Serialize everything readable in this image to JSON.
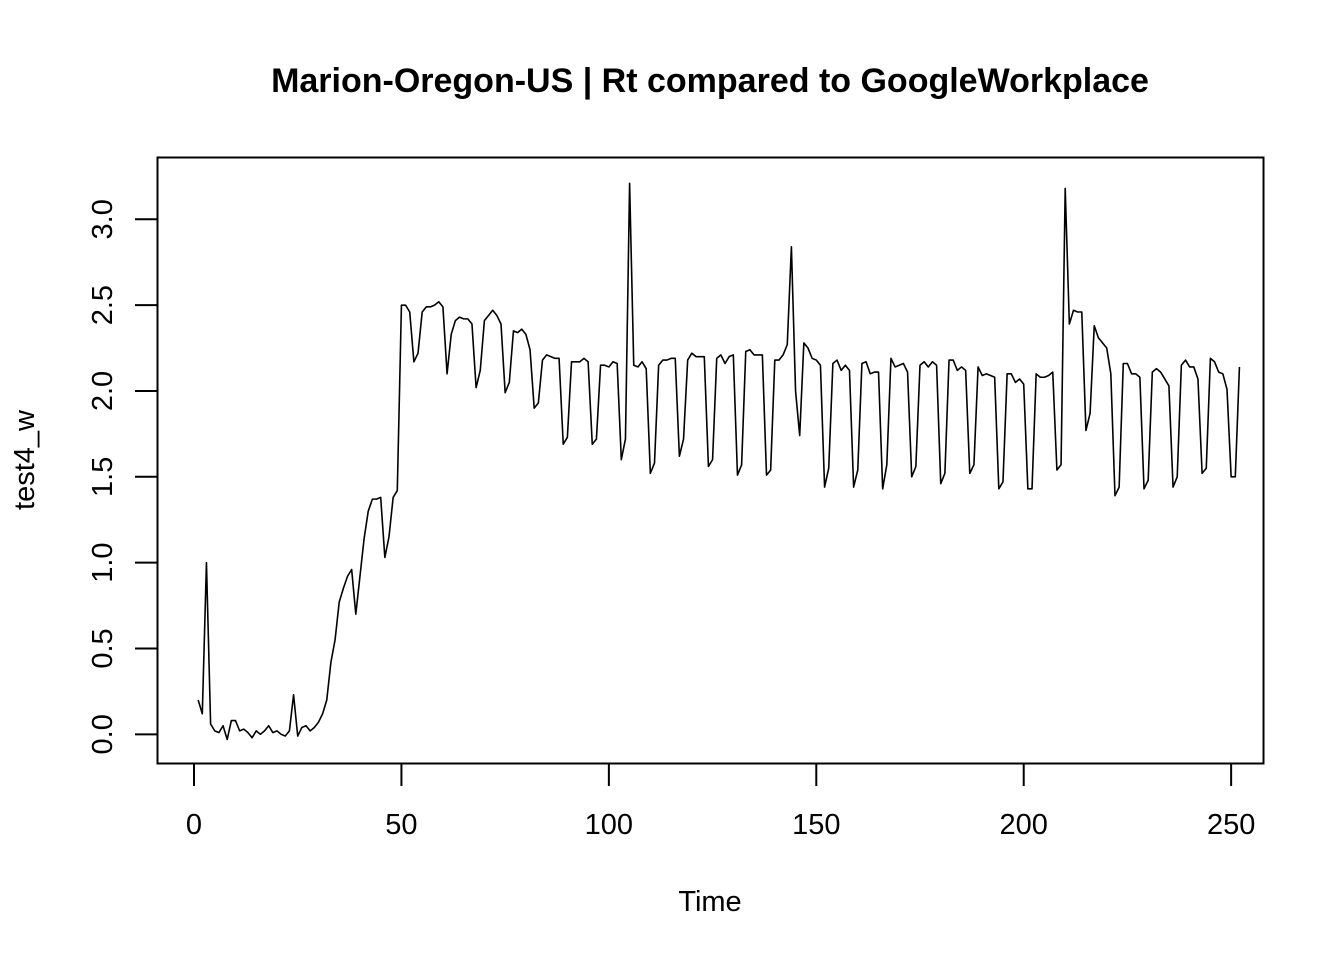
{
  "chart_data": {
    "type": "line",
    "title": "Marion-Oregon-US | Rt compared to GoogleWorkplace",
    "xlabel": "Time",
    "ylabel": "test4_w",
    "xlim": [
      -8.8,
      257.8
    ],
    "ylim": [
      -0.17,
      3.36
    ],
    "xticks": [
      0,
      50,
      100,
      150,
      200,
      250
    ],
    "yticks": [
      0.0,
      0.5,
      1.0,
      1.5,
      2.0,
      2.5,
      3.0
    ],
    "xtick_labels": [
      "0",
      "50",
      "100",
      "150",
      "200",
      "250"
    ],
    "ytick_labels": [
      "0.0",
      "0.5",
      "1.0",
      "1.5",
      "2.0",
      "2.5",
      "3.0"
    ],
    "grid": false,
    "line_color": "#000000",
    "series": [
      {
        "x_start": 1,
        "x_step": 1,
        "values": [
          0.2,
          0.12,
          1.0,
          0.06,
          0.02,
          0.01,
          0.05,
          -0.03,
          0.08,
          0.08,
          0.02,
          0.03,
          0.01,
          -0.02,
          0.02,
          0.0,
          0.02,
          0.05,
          0.01,
          0.02,
          0.0,
          -0.01,
          0.02,
          0.23,
          -0.01,
          0.04,
          0.05,
          0.02,
          0.04,
          0.07,
          0.12,
          0.2,
          0.42,
          0.55,
          0.77,
          0.85,
          0.92,
          0.96,
          0.7,
          0.92,
          1.14,
          1.3,
          1.37,
          1.37,
          1.38,
          1.03,
          1.15,
          1.38,
          1.42,
          2.5,
          2.5,
          2.46,
          2.17,
          2.22,
          2.46,
          2.49,
          2.49,
          2.5,
          2.52,
          2.49,
          2.1,
          2.33,
          2.41,
          2.43,
          2.42,
          2.42,
          2.39,
          2.02,
          2.12,
          2.41,
          2.44,
          2.47,
          2.44,
          2.39,
          1.99,
          2.05,
          2.35,
          2.34,
          2.36,
          2.33,
          2.24,
          1.9,
          1.93,
          2.18,
          2.21,
          2.2,
          2.19,
          2.19,
          1.69,
          1.73,
          2.17,
          2.17,
          2.17,
          2.19,
          2.17,
          1.69,
          1.72,
          2.15,
          2.15,
          2.14,
          2.17,
          2.16,
          1.6,
          1.72,
          3.21,
          2.15,
          2.14,
          2.17,
          2.13,
          1.52,
          1.58,
          2.15,
          2.18,
          2.18,
          2.19,
          2.19,
          1.62,
          1.72,
          2.18,
          2.22,
          2.2,
          2.2,
          2.2,
          1.56,
          1.6,
          2.19,
          2.21,
          2.16,
          2.2,
          2.21,
          1.51,
          1.57,
          2.23,
          2.24,
          2.21,
          2.21,
          2.21,
          1.51,
          1.54,
          2.18,
          2.18,
          2.21,
          2.27,
          2.84,
          2.0,
          1.74,
          2.28,
          2.25,
          2.19,
          2.18,
          2.15,
          1.44,
          1.55,
          2.16,
          2.18,
          2.12,
          2.15,
          2.12,
          1.44,
          1.54,
          2.16,
          2.17,
          2.1,
          2.11,
          2.11,
          1.43,
          1.57,
          2.19,
          2.14,
          2.15,
          2.16,
          2.11,
          1.5,
          1.56,
          2.15,
          2.17,
          2.14,
          2.17,
          2.15,
          1.46,
          1.52,
          2.18,
          2.18,
          2.12,
          2.14,
          2.12,
          1.52,
          1.57,
          2.14,
          2.09,
          2.1,
          2.09,
          2.08,
          1.43,
          1.47,
          2.1,
          2.1,
          2.05,
          2.07,
          2.04,
          1.43,
          1.43,
          2.1,
          2.08,
          2.08,
          2.09,
          2.11,
          1.54,
          1.57,
          3.18,
          2.39,
          2.47,
          2.46,
          2.46,
          1.77,
          1.87,
          2.38,
          2.31,
          2.28,
          2.25,
          2.1,
          1.39,
          1.44,
          2.16,
          2.16,
          2.1,
          2.1,
          2.08,
          1.43,
          1.48,
          2.11,
          2.13,
          2.11,
          2.07,
          2.03,
          1.44,
          1.5,
          2.15,
          2.18,
          2.14,
          2.14,
          2.07,
          1.52,
          1.55,
          2.19,
          2.17,
          2.11,
          2.1,
          2.01,
          1.5,
          1.5,
          2.14
        ]
      }
    ]
  }
}
